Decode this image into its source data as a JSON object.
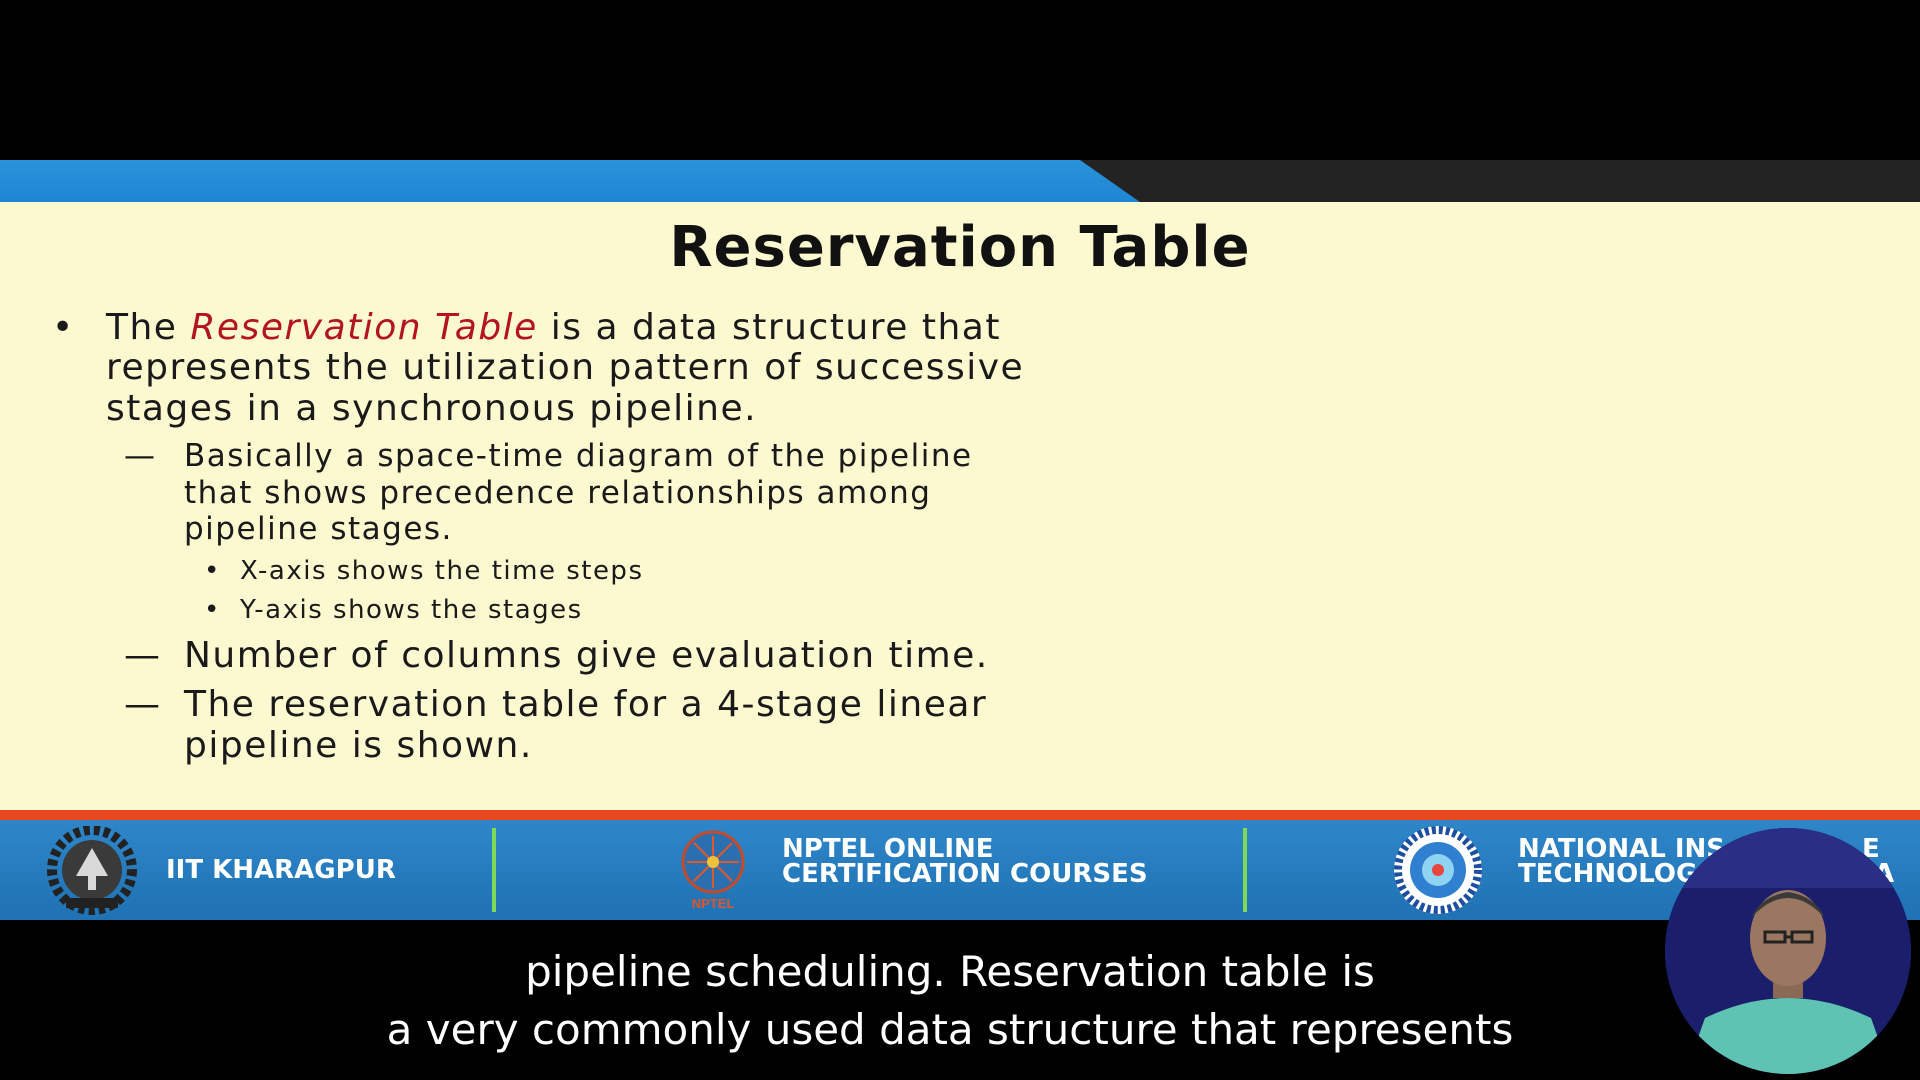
{
  "slide": {
    "title": "Reservation Table",
    "bullet1": {
      "marker": "•",
      "part1": "The ",
      "emphasis": "Reservation Table",
      "part2": " is a data structure that",
      "line2": "represents the utilization pattern of successive",
      "line3": "stages in a synchronous pipeline."
    },
    "sub1": {
      "marker": "—",
      "line1": "Basically a space-time diagram of the pipeline",
      "line2": "that shows precedence relationships among",
      "line3": "pipeline stages.",
      "items": [
        {
          "marker": "•",
          "text": "X-axis shows the time steps"
        },
        {
          "marker": "•",
          "text": "Y-axis shows the stages"
        }
      ]
    },
    "sub2": {
      "marker": "—",
      "text": "Number of columns give evaluation time."
    },
    "sub3": {
      "marker": "—",
      "line1": "The reservation table for a 4-stage linear",
      "line2": "pipeline is shown."
    }
  },
  "footer": {
    "left_label": "IIT KHARAGPUR",
    "center_label_line1": "NPTEL ONLINE",
    "center_label_line2": "CERTIFICATION COURSES",
    "center_logo_text": "NPTEL",
    "right_label_line1": "NATIONAL INS",
    "right_label_line2": "TECHNOLOG",
    "right_label_tail1": "E",
    "right_label_tail2": "A"
  },
  "subtitles": {
    "line1": "pipeline scheduling. Reservation table is",
    "line2": "a very commonly used data structure that represents"
  },
  "colors": {
    "slide_bg": "#fcf8cf",
    "accent_blue": "#1e86d2",
    "emphasis_red": "#b3141e",
    "footer_blue": "#2274b8",
    "footer_divider": "#7ed957",
    "footer_top_stripe": "#e9471d"
  },
  "icons": [
    "iit-kharagpur-logo-icon",
    "nptel-logo-icon",
    "national-institute-logo-icon",
    "presenter-video"
  ]
}
